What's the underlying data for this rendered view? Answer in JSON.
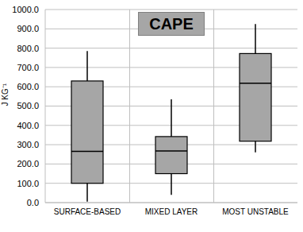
{
  "chart_data": {
    "type": "box",
    "title": "CAPE",
    "y_label": "J KG⁻¹",
    "categories": [
      "SURFACE-BASED",
      "MIXED LAYER",
      "MOST UNSTABLE"
    ],
    "min": [
      5,
      40,
      260
    ],
    "q1": [
      100,
      150,
      318
    ],
    "median": [
      265,
      268,
      618
    ],
    "q3": [
      630,
      342,
      772
    ],
    "max": [
      785,
      535,
      925
    ],
    "color": "#a6a6a6",
    "ylim": [
      0,
      1000
    ],
    "yticks": [
      {
        "value": 0,
        "label": "0.0"
      },
      {
        "value": 100,
        "label": "100.0"
      },
      {
        "value": 200,
        "label": "200.0"
      },
      {
        "value": 300,
        "label": "300.0"
      },
      {
        "value": 400,
        "label": "400.0"
      },
      {
        "value": 500,
        "label": "500.0"
      },
      {
        "value": 600,
        "label": "600.0"
      },
      {
        "value": 700,
        "label": "700.0"
      },
      {
        "value": 800,
        "label": "800.0"
      },
      {
        "value": 900,
        "label": "900.0"
      },
      {
        "value": 1000,
        "label": "1000.0"
      }
    ],
    "grid": true
  }
}
